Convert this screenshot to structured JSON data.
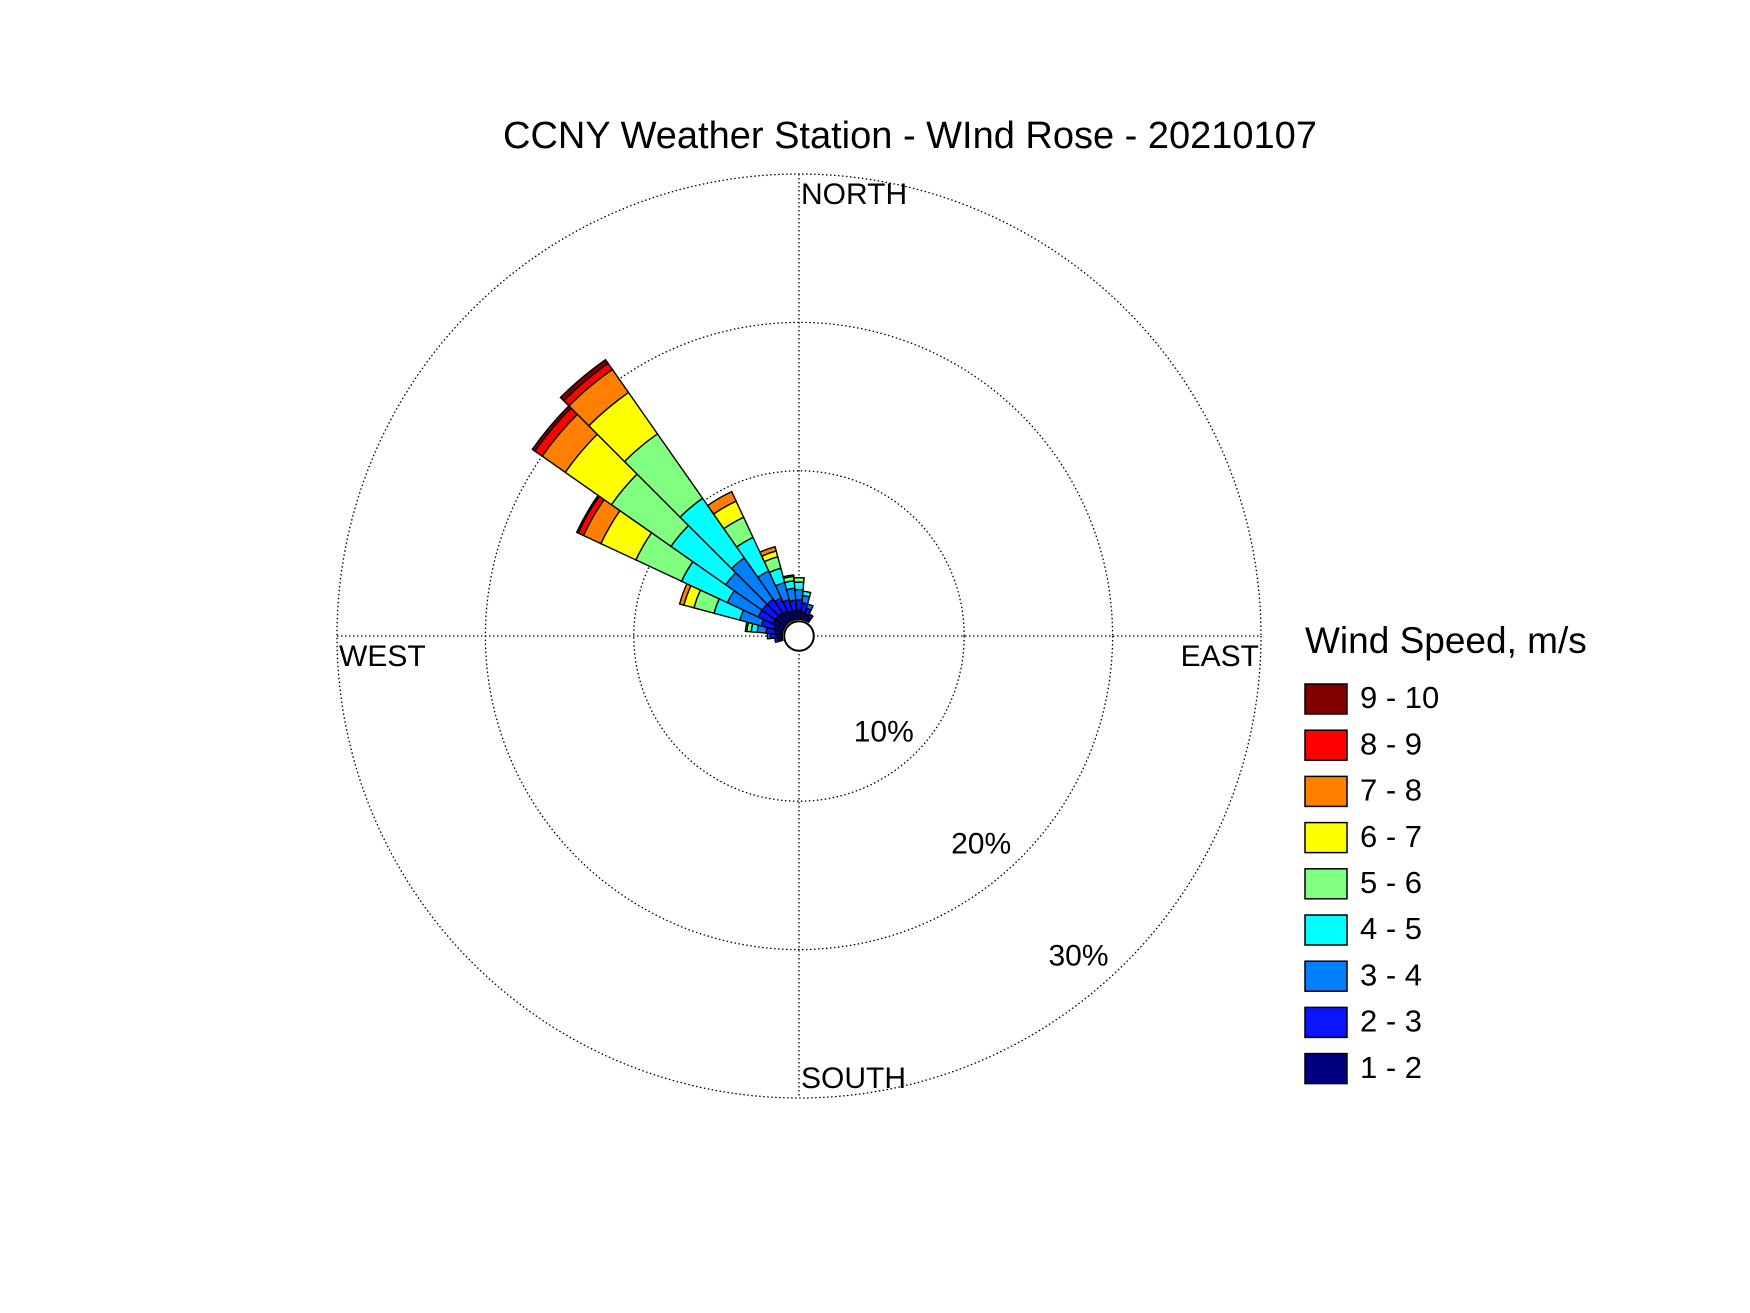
{
  "chart_data": {
    "type": "windrose",
    "title": "CCNY Weather Station - WInd Rose - 20210107",
    "direction_labels": {
      "north": "NORTH",
      "east": "EAST",
      "south": "SOUTH",
      "west": "WEST"
    },
    "legend_title": "Wind Speed, m/s",
    "x": [
      260,
      270,
      280,
      290,
      300,
      310,
      320,
      330,
      340,
      350,
      0,
      10,
      20,
      30
    ],
    "rlim": [
      0,
      30
    ],
    "rticks": [
      {
        "value": 10,
        "label": "10%"
      },
      {
        "value": 20,
        "label": "20%"
      },
      {
        "value": 30,
        "label": "30%"
      }
    ],
    "grid": true,
    "series": [
      {
        "name": "1 - 2",
        "color": "#000080",
        "values": [
          0.3,
          0.4,
          0.5,
          0.6,
          0.8,
          0.8,
          0.8,
          0.7,
          0.6,
          0.6,
          0.6,
          0.5,
          0.4,
          0.3
        ]
      },
      {
        "name": "2 - 3",
        "color": "#0a14ff",
        "values": [
          0.2,
          0.4,
          0.6,
          0.9,
          1.1,
          1.1,
          1.1,
          1.0,
          0.8,
          0.7,
          0.7,
          0.6,
          0.4,
          0.2
        ]
      },
      {
        "name": "3 - 4",
        "color": "#0080ff",
        "values": [
          0,
          0.2,
          0.6,
          1.5,
          2.3,
          3.0,
          3.4,
          2.0,
          1.2,
          0.8,
          0.7,
          0.5,
          0.3,
          0
        ]
      },
      {
        "name": "4 - 5",
        "color": "#00ffff",
        "values": [
          0,
          0,
          0.4,
          1.8,
          3.4,
          4.5,
          4.9,
          2.5,
          1.0,
          0.5,
          0.5,
          0.3,
          0,
          0
        ]
      },
      {
        "name": "5 - 6",
        "color": "#80ff80",
        "values": [
          0,
          0,
          0.3,
          1.4,
          3.4,
          4.9,
          5.3,
          1.5,
          0.8,
          0.3,
          0.3,
          0,
          0,
          0
        ]
      },
      {
        "name": "6 - 7",
        "color": "#ffff00",
        "values": [
          0,
          0,
          0.1,
          0.7,
          2.6,
          3.8,
          3.4,
          1.2,
          0.4,
          0.1,
          0,
          0,
          0,
          0
        ]
      },
      {
        "name": "7 - 8",
        "color": "#ff8000",
        "values": [
          0,
          0,
          0,
          0.3,
          1.3,
          1.9,
          1.9,
          0.7,
          0.3,
          0,
          0,
          0,
          0,
          0
        ]
      },
      {
        "name": "8 - 9",
        "color": "#ff0000",
        "values": [
          0,
          0,
          0,
          0,
          0.4,
          0.6,
          0.5,
          0,
          0,
          0,
          0,
          0,
          0,
          0
        ]
      },
      {
        "name": "9 - 10",
        "color": "#800000",
        "values": [
          0,
          0,
          0,
          0,
          0.1,
          0.2,
          0.3,
          0,
          0,
          0,
          0,
          0,
          0,
          0
        ]
      }
    ]
  }
}
